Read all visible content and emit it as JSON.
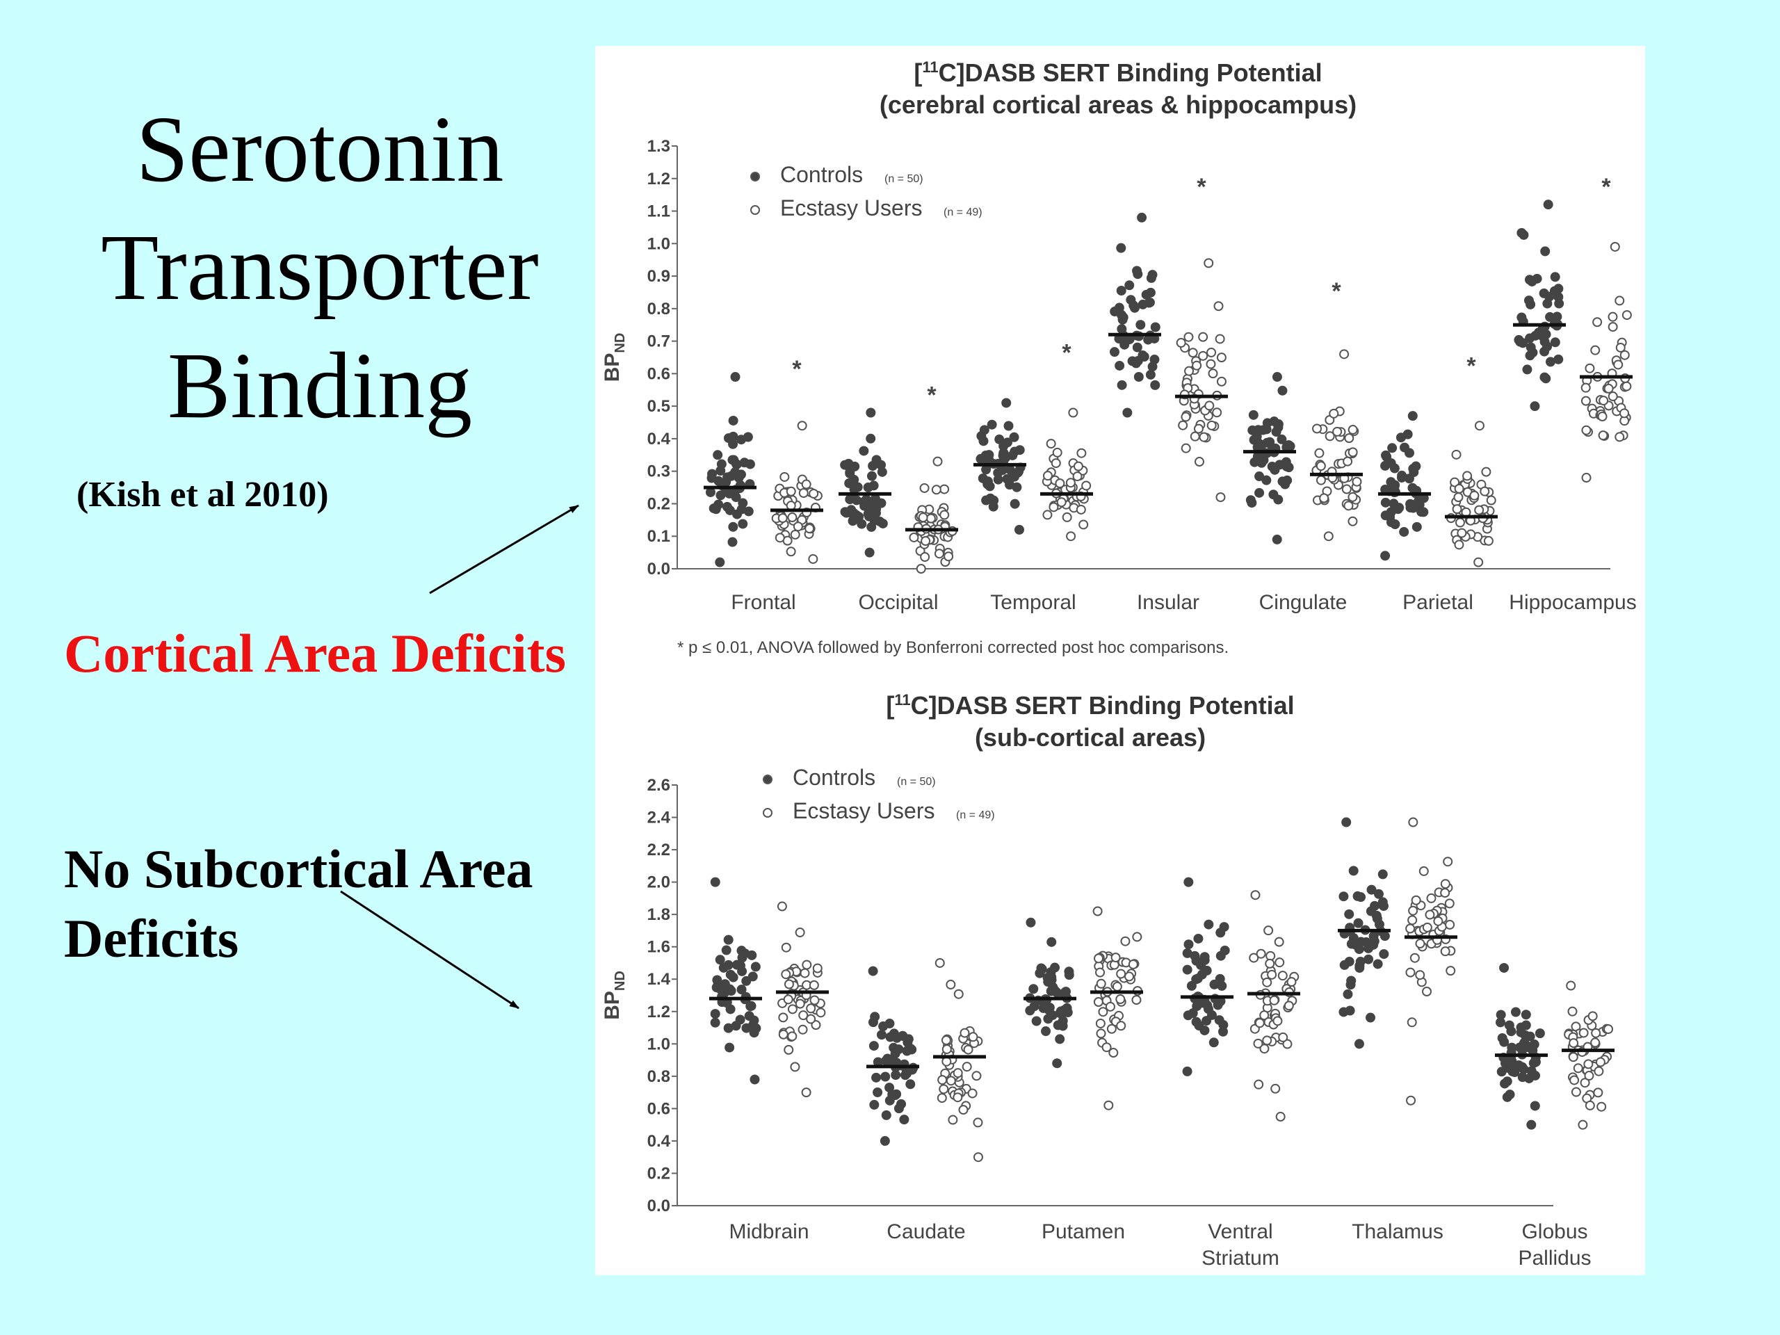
{
  "slide": {
    "title_lines": [
      "Serotonin",
      "Transporter",
      "Binding"
    ],
    "citation": "(Kish et al 2010)",
    "cortical_label": "Cortical Area Deficits",
    "subcortical_lines": [
      "No Subcortical Area",
      "Deficits"
    ]
  },
  "colors": {
    "background": "#ccffff",
    "cortical_label": "#ee1111",
    "controls_marker": "#444444",
    "users_marker": "#ffffff"
  },
  "footnote": "* p ≤ 0.01, ANOVA followed by Bonferroni corrected post hoc comparisons.",
  "chart_data": [
    {
      "type": "scatter",
      "title_lines": [
        "[11C]DASB SERT Binding Potential",
        "(cerebral cortical areas & hippocampus)"
      ],
      "ylabel": "BP_ND",
      "ylim": [
        0,
        1.3
      ],
      "yticks": [
        "0.0",
        "0.1",
        "0.2",
        "0.3",
        "0.4",
        "0.5",
        "0.6",
        "0.7",
        "0.8",
        "0.9",
        "1.0",
        "1.1",
        "1.2",
        "1.3"
      ],
      "legend": [
        {
          "label": "Controls",
          "n": "(n = 50)",
          "marker": "filled"
        },
        {
          "label": "Ecstasy Users",
          "n": "(n = 49)",
          "marker": "open"
        }
      ],
      "legend_position": "top-left",
      "categories": [
        {
          "label": [
            "Frontal"
          ],
          "controls": {
            "mean": 0.25,
            "min": 0.02,
            "max": 0.59
          },
          "users": {
            "mean": 0.18,
            "min": 0.03,
            "max": 0.44
          },
          "significant": true,
          "star_y": 0.62
        },
        {
          "label": [
            "Occipital"
          ],
          "controls": {
            "mean": 0.23,
            "min": 0.05,
            "max": 0.48
          },
          "users": {
            "mean": 0.12,
            "min": 0.0,
            "max": 0.33
          },
          "significant": true,
          "star_y": 0.54
        },
        {
          "label": [
            "Temporal"
          ],
          "controls": {
            "mean": 0.32,
            "min": 0.12,
            "max": 0.51
          },
          "users": {
            "mean": 0.23,
            "min": 0.1,
            "max": 0.48
          },
          "significant": true,
          "star_y": 0.67
        },
        {
          "label": [
            "Insular"
          ],
          "controls": {
            "mean": 0.72,
            "min": 0.48,
            "max": 1.08
          },
          "users": {
            "mean": 0.53,
            "min": 0.22,
            "max": 0.94
          },
          "significant": true,
          "star_y": 1.18
        },
        {
          "label": [
            "Cingulate"
          ],
          "controls": {
            "mean": 0.36,
            "min": 0.09,
            "max": 0.59
          },
          "users": {
            "mean": 0.29,
            "min": 0.1,
            "max": 0.66
          },
          "significant": true,
          "star_y": 0.86
        },
        {
          "label": [
            "Parietal"
          ],
          "controls": {
            "mean": 0.23,
            "min": 0.04,
            "max": 0.47
          },
          "users": {
            "mean": 0.16,
            "min": 0.02,
            "max": 0.44
          },
          "significant": true,
          "star_y": 0.63
        },
        {
          "label": [
            "Hippocampus"
          ],
          "controls": {
            "mean": 0.75,
            "min": 0.5,
            "max": 1.12
          },
          "users": {
            "mean": 0.59,
            "min": 0.28,
            "max": 0.99
          },
          "significant": true,
          "star_y": 1.18
        }
      ]
    },
    {
      "type": "scatter",
      "title_lines": [
        "[11C]DASB SERT Binding Potential",
        "(sub-cortical areas)"
      ],
      "ylabel": "BP_ND",
      "ylim": [
        0,
        2.6
      ],
      "yticks": [
        "0.0",
        "0.2",
        "0.4",
        "0.6",
        "0.8",
        "1.0",
        "1.2",
        "1.4",
        "1.6",
        "1.8",
        "2.0",
        "2.2",
        "2.4",
        "2.6"
      ],
      "legend": [
        {
          "label": "Controls",
          "n": "(n = 50)",
          "marker": "filled"
        },
        {
          "label": "Ecstasy Users",
          "n": "(n = 49)",
          "marker": "open"
        }
      ],
      "legend_position": "top-left",
      "categories": [
        {
          "label": [
            "Midbrain"
          ],
          "controls": {
            "mean": 1.28,
            "min": 0.78,
            "max": 2.0
          },
          "users": {
            "mean": 1.32,
            "min": 0.7,
            "max": 1.85
          },
          "significant": false
        },
        {
          "label": [
            "Caudate"
          ],
          "controls": {
            "mean": 0.86,
            "min": 0.4,
            "max": 1.45
          },
          "users": {
            "mean": 0.92,
            "min": 0.3,
            "max": 1.5
          },
          "significant": false
        },
        {
          "label": [
            "Putamen"
          ],
          "controls": {
            "mean": 1.28,
            "min": 0.88,
            "max": 1.75
          },
          "users": {
            "mean": 1.32,
            "min": 0.62,
            "max": 1.82
          },
          "significant": false
        },
        {
          "label": [
            "Ventral",
            "Striatum"
          ],
          "controls": {
            "mean": 1.29,
            "min": 0.83,
            "max": 2.0
          },
          "users": {
            "mean": 1.31,
            "min": 0.55,
            "max": 1.92
          },
          "significant": false
        },
        {
          "label": [
            "Thalamus"
          ],
          "controls": {
            "mean": 1.7,
            "min": 1.0,
            "max": 2.37
          },
          "users": {
            "mean": 1.66,
            "min": 0.65,
            "max": 2.37
          },
          "significant": false
        },
        {
          "label": [
            "Globus",
            "Pallidus"
          ],
          "controls": {
            "mean": 0.93,
            "min": 0.5,
            "max": 1.47
          },
          "users": {
            "mean": 0.96,
            "min": 0.5,
            "max": 1.36
          },
          "significant": false
        }
      ]
    }
  ]
}
